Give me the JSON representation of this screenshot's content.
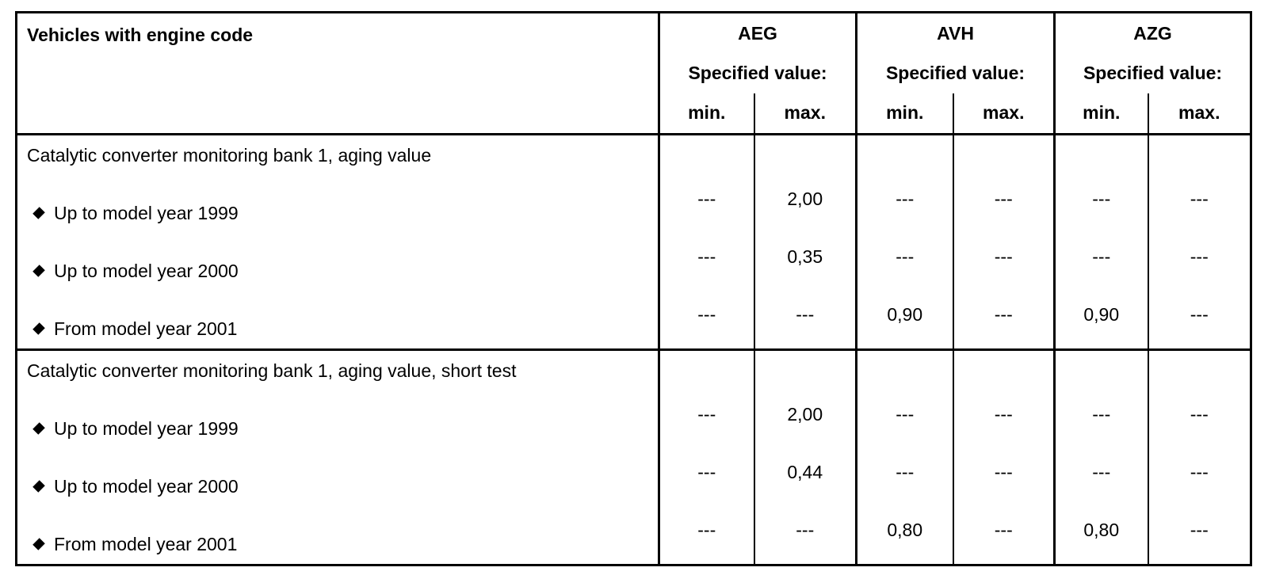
{
  "header": {
    "title": "Vehicles with engine code",
    "engines": [
      {
        "code": "AEG",
        "spec": "Specified value:",
        "min": "min.",
        "max": "max."
      },
      {
        "code": "AVH",
        "spec": "Specified value:",
        "min": "min.",
        "max": "max."
      },
      {
        "code": "AZG",
        "spec": "Specified value:",
        "min": "min.",
        "max": "max."
      }
    ]
  },
  "groups": [
    {
      "title": "Catalytic converter monitoring bank 1, aging value",
      "rows": [
        {
          "label": "Up to model year 1999",
          "values": [
            "---",
            "2,00",
            "---",
            "---",
            "---",
            "---"
          ]
        },
        {
          "label": "Up to model year 2000",
          "values": [
            "---",
            "0,35",
            "---",
            "---",
            "---",
            "---"
          ]
        },
        {
          "label": "From model year 2001",
          "values": [
            "---",
            "---",
            "0,90",
            "---",
            "0,90",
            "---"
          ]
        }
      ]
    },
    {
      "title": "Catalytic converter monitoring bank 1, aging value, short test",
      "rows": [
        {
          "label": "Up to model year 1999",
          "values": [
            "---",
            "2,00",
            "---",
            "---",
            "---",
            "---"
          ]
        },
        {
          "label": "Up to model year 2000",
          "values": [
            "---",
            "0,44",
            "---",
            "---",
            "---",
            "---"
          ]
        },
        {
          "label": "From model year 2001",
          "values": [
            "---",
            "---",
            "0,80",
            "---",
            "0,80",
            "---"
          ]
        }
      ]
    }
  ]
}
